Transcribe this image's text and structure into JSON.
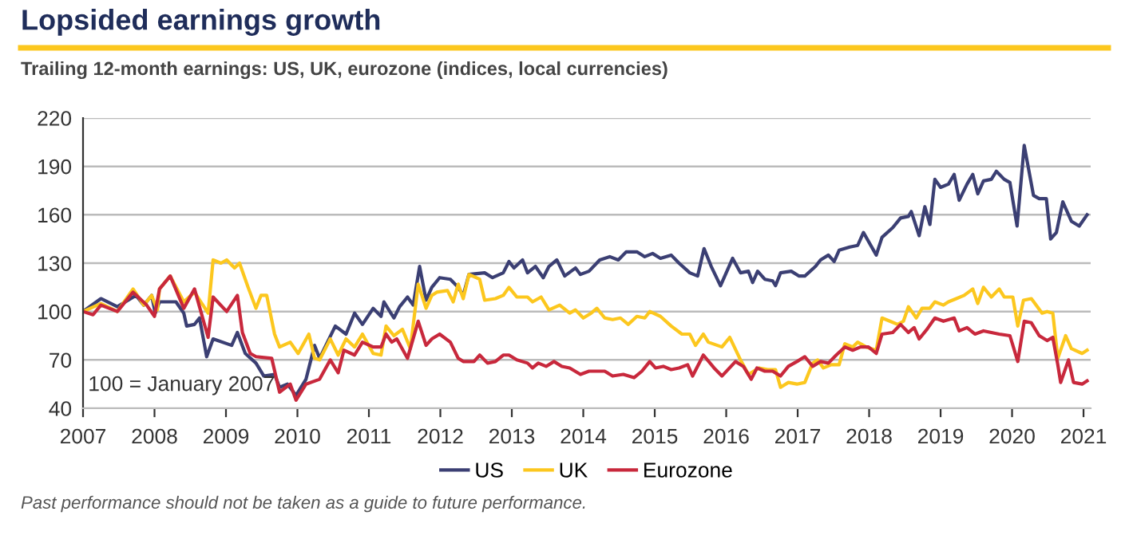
{
  "chart_data": {
    "type": "line",
    "title": "Lopsided earnings growth",
    "subtitle": "Trailing 12-month earnings: US, UK, eurozone (indices, local currencies)",
    "annotations": [
      "100 = January 2007",
      "Past performance should not be taken as a guide to future performance."
    ],
    "xlim": [
      2007,
      2021.1
    ],
    "xticks": [
      2007,
      2008,
      2009,
      2010,
      2011,
      2012,
      2013,
      2014,
      2015,
      2016,
      2017,
      2018,
      2019,
      2020,
      2021
    ],
    "ylim": [
      40,
      220
    ],
    "yticks": [
      40,
      70,
      100,
      130,
      160,
      190,
      220
    ],
    "grid": "y",
    "legend": "bottom",
    "marker": "none",
    "line_style": "solid",
    "series": [
      {
        "name": "US",
        "color": "#3b3f73",
        "x": [
          2007.0,
          2007.25,
          2007.48,
          2007.74,
          2007.85,
          2007.96,
          2008.01,
          2008.07,
          2008.3,
          2008.41,
          2008.45,
          2008.56,
          2008.63,
          2008.73,
          2008.82,
          2009.08,
          2009.16,
          2009.27,
          2009.42,
          2009.53,
          2009.68,
          2009.75,
          2009.86,
          2009.98,
          2010.12,
          2010.24,
          2010.31,
          2010.53,
          2010.68,
          2010.8,
          2010.91,
          2011.06,
          2011.17,
          2011.21,
          2011.35,
          2011.43,
          2011.54,
          2011.62,
          2011.71,
          2011.8,
          2011.88,
          2011.99,
          2012.14,
          2012.25,
          2012.32,
          2012.4,
          2012.62,
          2012.73,
          2012.88,
          2012.96,
          2013.03,
          2013.15,
          2013.22,
          2013.33,
          2013.44,
          2013.52,
          2013.63,
          2013.74,
          2013.89,
          2013.96,
          2014.08,
          2014.23,
          2014.37,
          2014.49,
          2014.6,
          2014.75,
          2014.86,
          2014.97,
          2015.08,
          2015.23,
          2015.34,
          2015.49,
          2015.6,
          2015.69,
          2015.79,
          2015.92,
          2016.09,
          2016.2,
          2016.31,
          2016.37,
          2016.44,
          2016.54,
          2016.65,
          2016.69,
          2016.76,
          2016.91,
          2017.02,
          2017.1,
          2017.25,
          2017.32,
          2017.43,
          2017.51,
          2017.58,
          2017.73,
          2017.84,
          2017.92,
          2018.1,
          2018.18,
          2018.33,
          2018.44,
          2018.55,
          2018.59,
          2018.7,
          2018.78,
          2018.85,
          2018.92,
          2019.0,
          2019.11,
          2019.19,
          2019.26,
          2019.37,
          2019.45,
          2019.52,
          2019.6,
          2019.71,
          2019.78,
          2019.89,
          2019.97,
          2020.07,
          2020.17,
          2020.3,
          2020.38,
          2020.48,
          2020.54,
          2020.62,
          2020.71,
          2020.83,
          2020.94,
          2021.05
        ],
        "values": [
          100,
          108,
          103,
          110,
          104,
          110,
          99,
          106,
          106,
          99,
          91,
          92,
          96,
          72,
          83,
          79,
          87,
          74,
          68,
          60,
          61,
          53,
          55,
          48,
          58,
          79,
          71,
          91,
          86,
          99,
          92,
          102,
          97,
          106,
          96,
          103,
          109,
          104,
          128,
          107,
          115,
          121,
          120,
          115,
          110,
          123,
          124,
          121,
          124,
          131,
          127,
          132,
          124,
          128,
          121,
          128,
          132,
          122,
          127,
          123,
          125,
          132,
          134,
          132,
          137,
          137,
          134,
          136,
          133,
          135,
          130,
          124,
          122,
          139,
          128,
          116,
          133,
          124,
          125,
          118,
          125,
          120,
          119,
          116,
          124,
          125,
          122,
          122,
          128,
          132,
          135,
          131,
          138,
          140,
          141,
          149,
          135,
          146,
          152,
          158,
          159,
          162,
          147,
          165,
          154,
          182,
          177,
          179,
          185,
          169,
          179,
          185,
          173,
          181,
          182,
          187,
          182,
          180,
          153,
          203,
          172,
          170,
          170,
          145,
          149,
          168,
          156,
          153,
          160
        ]
      },
      {
        "name": "UK",
        "color": "#fcc71e",
        "x": [
          2007.0,
          2007.25,
          2007.48,
          2007.7,
          2007.85,
          2007.96,
          2008.04,
          2008.07,
          2008.22,
          2008.41,
          2008.56,
          2008.75,
          2008.82,
          2008.93,
          2009.01,
          2009.12,
          2009.19,
          2009.31,
          2009.42,
          2009.49,
          2009.57,
          2009.68,
          2009.75,
          2009.9,
          2010.01,
          2010.16,
          2010.24,
          2010.31,
          2010.46,
          2010.57,
          2010.68,
          2010.8,
          2010.91,
          2011.06,
          2011.17,
          2011.24,
          2011.35,
          2011.47,
          2011.58,
          2011.69,
          2011.8,
          2011.88,
          2011.95,
          2012.1,
          2012.18,
          2012.25,
          2012.32,
          2012.4,
          2012.55,
          2012.62,
          2012.77,
          2012.88,
          2012.96,
          2013.07,
          2013.22,
          2013.29,
          2013.41,
          2013.52,
          2013.67,
          2013.81,
          2013.89,
          2014.0,
          2014.11,
          2014.19,
          2014.3,
          2014.41,
          2014.52,
          2014.63,
          2014.75,
          2014.86,
          2014.93,
          2015.08,
          2015.23,
          2015.38,
          2015.49,
          2015.57,
          2015.68,
          2015.75,
          2015.94,
          2016.05,
          2016.2,
          2016.31,
          2016.46,
          2016.58,
          2016.69,
          2016.76,
          2016.87,
          2016.99,
          2017.1,
          2017.21,
          2017.28,
          2017.36,
          2017.47,
          2017.58,
          2017.66,
          2017.77,
          2017.84,
          2017.96,
          2018.1,
          2018.18,
          2018.29,
          2018.4,
          2018.48,
          2018.55,
          2018.66,
          2018.74,
          2018.85,
          2018.92,
          2019.04,
          2019.11,
          2019.22,
          2019.33,
          2019.45,
          2019.52,
          2019.6,
          2019.71,
          2019.82,
          2019.89,
          2020.01,
          2020.08,
          2020.16,
          2020.27,
          2020.42,
          2020.49,
          2020.57,
          2020.64,
          2020.75,
          2020.83,
          2020.98,
          2021.05
        ],
        "values": [
          100,
          105,
          100,
          114,
          104,
          110,
          101,
          114,
          122,
          106,
          112,
          99,
          132,
          130,
          132,
          127,
          130,
          115,
          102,
          110,
          110,
          86,
          78,
          81,
          74,
          86,
          71,
          70,
          83,
          73,
          83,
          78,
          86,
          74,
          73,
          91,
          85,
          89,
          77,
          117,
          102,
          110,
          112,
          113,
          106,
          117,
          108,
          123,
          120,
          107,
          108,
          110,
          115,
          109,
          109,
          106,
          109,
          101,
          104,
          99,
          101,
          96,
          99,
          102,
          96,
          95,
          96,
          92,
          97,
          96,
          100,
          97,
          91,
          86,
          86,
          79,
          86,
          81,
          78,
          84,
          70,
          61,
          65,
          64,
          64,
          53,
          56,
          55,
          56,
          68,
          70,
          65,
          67,
          67,
          80,
          78,
          81,
          78,
          76,
          96,
          94,
          92,
          94,
          103,
          96,
          102,
          102,
          106,
          104,
          106,
          108,
          110,
          114,
          105,
          115,
          109,
          114,
          109,
          109,
          91,
          107,
          108,
          99,
          100,
          99,
          71,
          85,
          77,
          74,
          76
        ]
      },
      {
        "name": "Eurozone",
        "color": "#c8283c",
        "x": [
          2007.0,
          2007.14,
          2007.25,
          2007.48,
          2007.7,
          2007.89,
          2008.0,
          2008.07,
          2008.22,
          2008.41,
          2008.56,
          2008.75,
          2008.82,
          2009.01,
          2009.16,
          2009.23,
          2009.34,
          2009.42,
          2009.64,
          2009.75,
          2009.9,
          2009.98,
          2010.12,
          2010.31,
          2010.46,
          2010.57,
          2010.65,
          2010.8,
          2010.91,
          2011.06,
          2011.17,
          2011.24,
          2011.32,
          2011.39,
          2011.54,
          2011.69,
          2011.8,
          2011.88,
          2011.99,
          2012.14,
          2012.25,
          2012.32,
          2012.47,
          2012.55,
          2012.66,
          2012.77,
          2012.88,
          2012.96,
          2013.07,
          2013.22,
          2013.29,
          2013.37,
          2013.48,
          2013.59,
          2013.7,
          2013.81,
          2013.96,
          2014.08,
          2014.3,
          2014.41,
          2014.56,
          2014.71,
          2014.82,
          2014.93,
          2015.01,
          2015.12,
          2015.23,
          2015.34,
          2015.46,
          2015.53,
          2015.68,
          2015.83,
          2015.94,
          2016.13,
          2016.24,
          2016.35,
          2016.43,
          2016.54,
          2016.65,
          2016.76,
          2016.87,
          2016.99,
          2017.1,
          2017.21,
          2017.32,
          2017.43,
          2017.54,
          2017.66,
          2017.77,
          2017.88,
          2017.99,
          2018.1,
          2018.18,
          2018.33,
          2018.44,
          2018.55,
          2018.63,
          2018.7,
          2018.81,
          2018.92,
          2019.04,
          2019.19,
          2019.26,
          2019.37,
          2019.48,
          2019.6,
          2019.71,
          2019.82,
          2019.97,
          2020.08,
          2020.17,
          2020.27,
          2020.38,
          2020.49,
          2020.57,
          2020.64,
          2020.68,
          2020.79,
          2020.86,
          2020.98,
          2021.05
        ],
        "values": [
          100,
          98,
          104,
          100,
          112,
          104,
          97,
          114,
          122,
          102,
          114,
          84,
          109,
          100,
          110,
          87,
          74,
          72,
          71,
          50,
          55,
          45,
          55,
          58,
          70,
          62,
          76,
          73,
          81,
          78,
          78,
          86,
          81,
          83,
          71,
          94,
          79,
          83,
          86,
          81,
          71,
          69,
          69,
          73,
          68,
          69,
          73,
          73,
          70,
          68,
          65,
          68,
          66,
          69,
          66,
          65,
          61,
          63,
          63,
          60,
          61,
          59,
          63,
          69,
          65,
          66,
          64,
          65,
          67,
          60,
          73,
          65,
          60,
          69,
          66,
          58,
          65,
          63,
          63,
          60,
          66,
          69,
          72,
          66,
          69,
          68,
          73,
          78,
          76,
          78,
          78,
          74,
          86,
          87,
          92,
          87,
          90,
          83,
          89,
          96,
          94,
          96,
          88,
          90,
          86,
          88,
          87,
          86,
          85,
          69,
          94,
          93,
          85,
          82,
          84,
          67,
          56,
          70,
          56,
          55,
          57
        ]
      }
    ]
  }
}
